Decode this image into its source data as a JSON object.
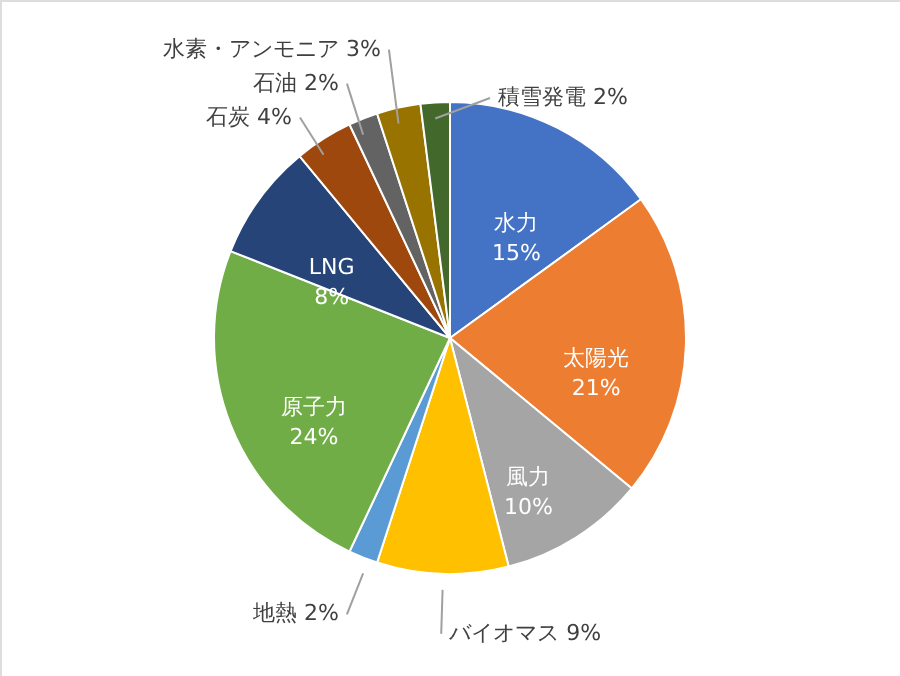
{
  "chart_data": {
    "type": "pie",
    "categories": [
      "水力",
      "太陽光",
      "風力",
      "バイオマス",
      "地熱",
      "原子力",
      "LNG",
      "石炭",
      "石油",
      "水素・アンモニア",
      "積雪発電"
    ],
    "values": [
      15,
      21,
      10,
      9,
      2,
      24,
      8,
      4,
      2,
      3,
      2
    ],
    "colors": [
      "#4472c4",
      "#ed7d31",
      "#a5a5a5",
      "#ffc000",
      "#5b9bd5",
      "#70ad47",
      "#264478",
      "#9e480e",
      "#636363",
      "#997300",
      "#43682b"
    ],
    "value_labels": [
      "15%",
      "21%",
      "10%",
      "9%",
      "2%",
      "24%",
      "8%",
      "4%",
      "2%",
      "3%",
      "2%"
    ],
    "legend": false
  }
}
